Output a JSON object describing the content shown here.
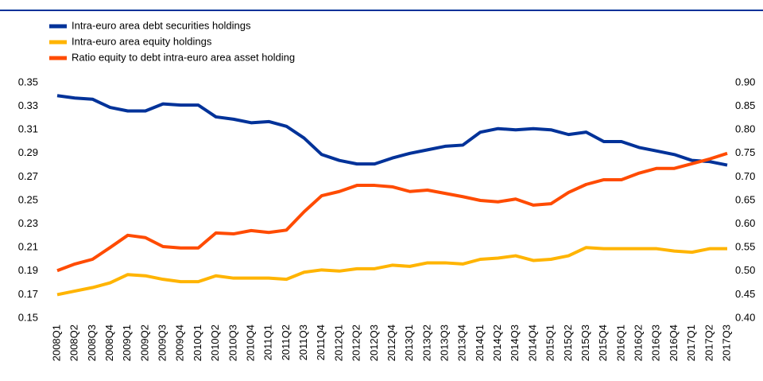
{
  "chart_data": {
    "type": "line",
    "categories": [
      "2008Q1",
      "2008Q2",
      "2008Q3",
      "2008Q4",
      "2009Q1",
      "2009Q2",
      "2009Q3",
      "2009Q4",
      "2010Q1",
      "2010Q2",
      "2010Q3",
      "2010Q4",
      "2011Q1",
      "2011Q2",
      "2011Q3",
      "2011Q4",
      "2012Q1",
      "2012Q2",
      "2012Q3",
      "2012Q4",
      "2013Q1",
      "2013Q2",
      "2013Q3",
      "2013Q4",
      "2014Q1",
      "2014Q2",
      "2014Q3",
      "2014Q4",
      "2015Q1",
      "2015Q2",
      "2015Q3",
      "2015Q4",
      "2016Q1",
      "2016Q2",
      "2016Q3",
      "2016Q4",
      "2017Q1",
      "2017Q2",
      "2017Q3"
    ],
    "series": [
      {
        "name": "Intra-euro area debt securities holdings",
        "color": "#003299",
        "values": [
          0.339,
          0.337,
          0.336,
          0.329,
          0.326,
          0.326,
          0.332,
          0.331,
          0.331,
          0.321,
          0.319,
          0.316,
          0.317,
          0.313,
          0.303,
          0.289,
          0.284,
          0.281,
          0.281,
          0.286,
          0.29,
          0.293,
          0.296,
          0.297,
          0.308,
          0.311,
          0.31,
          0.311,
          0.31,
          0.306,
          0.308,
          0.3,
          0.3,
          0.295,
          0.292,
          0.289,
          0.284,
          0.283,
          0.28
        ]
      },
      {
        "name": "Intra-euro area equity holdings",
        "color": "#ffb400",
        "values": [
          0.17,
          0.173,
          0.176,
          0.18,
          0.187,
          0.186,
          0.183,
          0.181,
          0.181,
          0.186,
          0.184,
          0.184,
          0.184,
          0.183,
          0.189,
          0.191,
          0.19,
          0.192,
          0.192,
          0.195,
          0.194,
          0.197,
          0.197,
          0.196,
          0.2,
          0.201,
          0.203,
          0.199,
          0.2,
          0.203,
          0.21,
          0.209,
          0.209,
          0.209,
          0.209,
          0.207,
          0.206,
          0.209,
          0.209
        ]
      },
      {
        "name": "Ratio equity to debt intra-euro area asset holding",
        "color": "#ff4b00",
        "axis": "y2",
        "values": [
          0.501,
          0.515,
          0.525,
          0.55,
          0.576,
          0.571,
          0.552,
          0.549,
          0.549,
          0.581,
          0.579,
          0.586,
          0.582,
          0.587,
          0.626,
          0.66,
          0.669,
          0.682,
          0.682,
          0.679,
          0.669,
          0.672,
          0.665,
          0.658,
          0.65,
          0.647,
          0.653,
          0.64,
          0.643,
          0.667,
          0.684,
          0.694,
          0.694,
          0.708,
          0.718,
          0.718,
          0.728,
          0.738,
          0.75
        ]
      }
    ],
    "ylim": [
      0.15,
      0.35
    ],
    "yticks": [
      0.15,
      0.17,
      0.19,
      0.21,
      0.23,
      0.25,
      0.27,
      0.29,
      0.31,
      0.33,
      0.35
    ],
    "y2lim": [
      0.4,
      0.9
    ],
    "y2ticks": [
      {
        "value": 0.4,
        "label": "0.40"
      },
      0.45,
      {
        "value": 0.5,
        "label": "0.50"
      },
      0.55,
      {
        "value": 0.6,
        "label": "0.60"
      },
      0.65,
      {
        "value": 0.7,
        "label": "0.70"
      },
      0.75,
      {
        "value": 0.8,
        "label": "0.80"
      },
      0.85,
      {
        "value": 0.9,
        "label": "0.90"
      }
    ],
    "grid": false
  }
}
